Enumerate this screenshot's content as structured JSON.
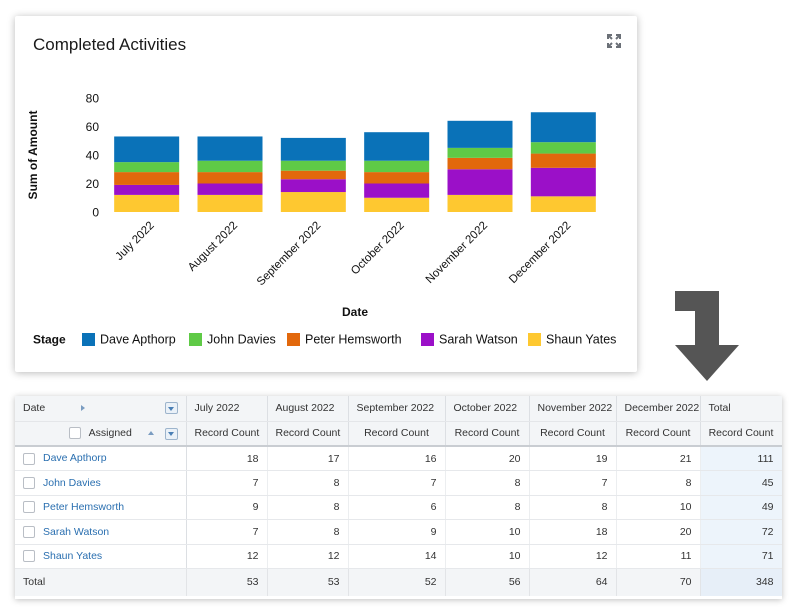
{
  "chart": {
    "title": "Completed Activities",
    "expand_icon": "expand-icon",
    "legend_title": "Stage"
  },
  "chart_data": {
    "type": "bar",
    "stacked": true,
    "categories": [
      "July 2022",
      "August 2022",
      "September 2022",
      "October 2022",
      "November 2022",
      "December 2022"
    ],
    "series": [
      {
        "name": "Shaun Yates",
        "color": "#fec830",
        "values": [
          12,
          12,
          14,
          10,
          12,
          11
        ]
      },
      {
        "name": "Sarah Watson",
        "color": "#9b10c8",
        "values": [
          7,
          8,
          9,
          10,
          18,
          20
        ]
      },
      {
        "name": "Peter Hemsworth",
        "color": "#e2680c",
        "values": [
          9,
          8,
          6,
          8,
          8,
          10
        ]
      },
      {
        "name": "John Davies",
        "color": "#5fca46",
        "values": [
          7,
          8,
          7,
          8,
          7,
          8
        ]
      },
      {
        "name": "Dave Apthorp",
        "color": "#0a72b8",
        "values": [
          18,
          17,
          16,
          20,
          19,
          21
        ]
      }
    ],
    "legend_order": [
      "Dave Apthorp",
      "John Davies",
      "Peter Hemsworth",
      "Sarah Watson",
      "Shaun Yates"
    ],
    "xlabel": "Date",
    "ylabel": "Sum of Amount",
    "yticks": [
      0,
      20,
      40,
      60,
      80
    ],
    "ylim": [
      0,
      80
    ],
    "legend_position": "bottom",
    "grid": false
  },
  "arrow_icon": "down-right-arrow-icon",
  "table": {
    "date_header": "Date",
    "assigned_header": "Assigned",
    "months": [
      "July 2022",
      "August 2022",
      "September 2022",
      "October 2022",
      "November 2022",
      "December 2022"
    ],
    "total_header": "Total",
    "metric_label": "Record Count",
    "rows": [
      {
        "name": "Dave Apthorp",
        "values": [
          "18",
          "17",
          "16",
          "20",
          "19",
          "21"
        ],
        "total": "111"
      },
      {
        "name": "John Davies",
        "values": [
          "7",
          "8",
          "7",
          "8",
          "7",
          "8"
        ],
        "total": "45"
      },
      {
        "name": "Peter Hemsworth",
        "values": [
          "9",
          "8",
          "6",
          "8",
          "8",
          "10"
        ],
        "total": "49"
      },
      {
        "name": "Sarah Watson",
        "values": [
          "7",
          "8",
          "9",
          "10",
          "18",
          "20"
        ],
        "total": "72"
      },
      {
        "name": "Shaun Yates",
        "values": [
          "12",
          "12",
          "14",
          "10",
          "12",
          "11"
        ],
        "total": "71"
      }
    ],
    "footer": {
      "label": "Total",
      "values": [
        "53",
        "53",
        "52",
        "56",
        "64",
        "70"
      ],
      "total": "348"
    }
  }
}
